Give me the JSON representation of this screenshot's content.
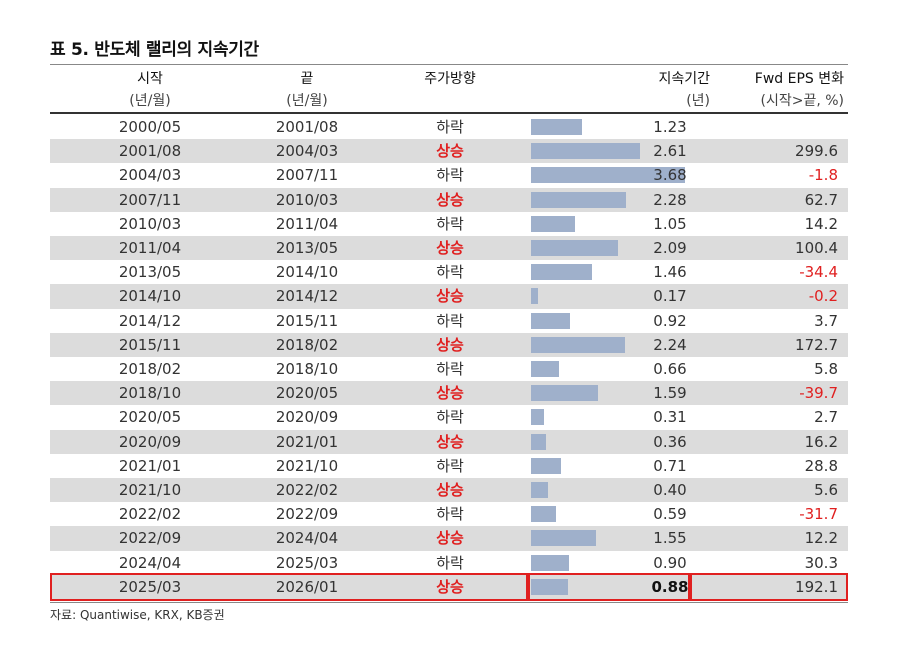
{
  "title": "표 5. 반도체 랠리의 지속기간",
  "headers": {
    "start": "시작",
    "start_unit": "(년/월)",
    "end": "끝",
    "end_unit": "(년/월)",
    "direction": "주가방향",
    "duration": "지속기간",
    "duration_unit": "(년)",
    "eps": "Fwd EPS 변화",
    "eps_unit": "(시작>끝, %)"
  },
  "colors": {
    "up": "#e02020",
    "bar": "#9fb0cb",
    "shade": "#dcdcdc",
    "highlight": "#e02020"
  },
  "rows": [
    {
      "start": "2000/05",
      "end": "2001/08",
      "direction": "하락",
      "duration": "1.23",
      "eps": ""
    },
    {
      "start": "2001/08",
      "end": "2004/03",
      "direction": "상승",
      "duration": "2.61",
      "eps": "299.6"
    },
    {
      "start": "2004/03",
      "end": "2007/11",
      "direction": "하락",
      "duration": "3.68",
      "eps": "-1.8"
    },
    {
      "start": "2007/11",
      "end": "2010/03",
      "direction": "상승",
      "duration": "2.28",
      "eps": "62.7"
    },
    {
      "start": "2010/03",
      "end": "2011/04",
      "direction": "하락",
      "duration": "1.05",
      "eps": "14.2"
    },
    {
      "start": "2011/04",
      "end": "2013/05",
      "direction": "상승",
      "duration": "2.09",
      "eps": "100.4"
    },
    {
      "start": "2013/05",
      "end": "2014/10",
      "direction": "하락",
      "duration": "1.46",
      "eps": "-34.4"
    },
    {
      "start": "2014/10",
      "end": "2014/12",
      "direction": "상승",
      "duration": "0.17",
      "eps": "-0.2"
    },
    {
      "start": "2014/12",
      "end": "2015/11",
      "direction": "하락",
      "duration": "0.92",
      "eps": "3.7"
    },
    {
      "start": "2015/11",
      "end": "2018/02",
      "direction": "상승",
      "duration": "2.24",
      "eps": "172.7"
    },
    {
      "start": "2018/02",
      "end": "2018/10",
      "direction": "하락",
      "duration": "0.66",
      "eps": "5.8"
    },
    {
      "start": "2018/10",
      "end": "2020/05",
      "direction": "상승",
      "duration": "1.59",
      "eps": "-39.7"
    },
    {
      "start": "2020/05",
      "end": "2020/09",
      "direction": "하락",
      "duration": "0.31",
      "eps": "2.7"
    },
    {
      "start": "2020/09",
      "end": "2021/01",
      "direction": "상승",
      "duration": "0.36",
      "eps": "16.2"
    },
    {
      "start": "2021/01",
      "end": "2021/10",
      "direction": "하락",
      "duration": "0.71",
      "eps": "28.8"
    },
    {
      "start": "2021/10",
      "end": "2022/02",
      "direction": "상승",
      "duration": "0.40",
      "eps": "5.6"
    },
    {
      "start": "2022/02",
      "end": "2022/09",
      "direction": "하락",
      "duration": "0.59",
      "eps": "-31.7"
    },
    {
      "start": "2022/09",
      "end": "2024/04",
      "direction": "상승",
      "duration": "1.55",
      "eps": "12.2"
    },
    {
      "start": "2024/04",
      "end": "2025/03",
      "direction": "하락",
      "duration": "0.90",
      "eps": "30.3"
    },
    {
      "start": "2025/03",
      "end": "2026/01",
      "direction": "상승",
      "duration": "0.88",
      "eps": "192.1",
      "highlight": true
    }
  ],
  "source": "자료: Quantiwise, KRX, KB증권"
}
